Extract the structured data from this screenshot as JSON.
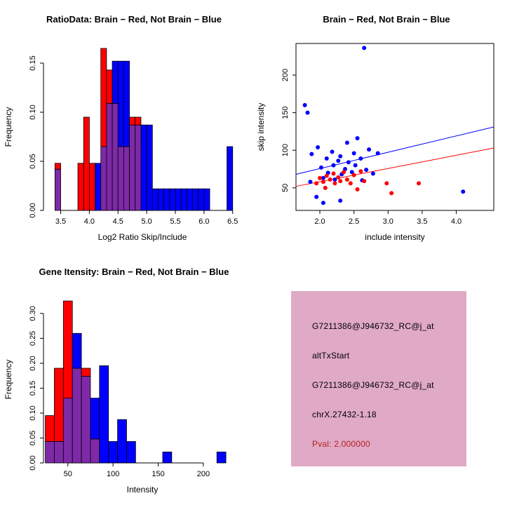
{
  "page": {
    "background": "#FFFFFF"
  },
  "colors": {
    "red": "#FF0000",
    "blue": "#0000FF",
    "overlap": "#7E2AA8",
    "axis": "#000000",
    "text": "#000000"
  },
  "chart_data": [
    {
      "id": "ratio-histogram",
      "type": "bar",
      "subtype": "overlaid-histogram",
      "title": "RatioData: Brain − Red, Not Brain − Blue",
      "xlabel": "Log2 Ratio Skip/Include",
      "ylabel": "Frequency",
      "xlim": [
        3.2,
        6.65
      ],
      "ylim": [
        0,
        0.17
      ],
      "grid": false,
      "legend": "none",
      "xticks": [
        {
          "v": 3.5,
          "label": "3.5"
        },
        {
          "v": 4.0,
          "label": "4.0"
        },
        {
          "v": 4.5,
          "label": "4.5"
        },
        {
          "v": 5.0,
          "label": "5.0"
        },
        {
          "v": 5.5,
          "label": "5.5"
        },
        {
          "v": 6.0,
          "label": "6.0"
        },
        {
          "v": 6.5,
          "label": "6.5"
        }
      ],
      "yticks": [
        {
          "v": 0,
          "label": "0.00"
        },
        {
          "v": 0.05,
          "label": "0.05"
        },
        {
          "v": 0.1,
          "label": "0.10"
        },
        {
          "v": 0.15,
          "label": "0.15"
        }
      ],
      "series_legend": {
        "red": "Brain",
        "blue": "Not Brain"
      },
      "bin_width": 0.1,
      "bins": [
        [
          3.4,
          0.048,
          0.042
        ],
        [
          3.8,
          0.048,
          0
        ],
        [
          3.9,
          0.095,
          0
        ],
        [
          4.0,
          0.048,
          0
        ],
        [
          4.1,
          0,
          0.048
        ],
        [
          4.2,
          0.165,
          0.065
        ],
        [
          4.3,
          0.143,
          0.109
        ],
        [
          4.4,
          0.109,
          0.152
        ],
        [
          4.5,
          0.065,
          0.152
        ],
        [
          4.6,
          0.065,
          0.152
        ],
        [
          4.7,
          0.095,
          0.087
        ],
        [
          4.8,
          0.095,
          0.087
        ],
        [
          4.9,
          0,
          0.087
        ],
        [
          5.0,
          0,
          0.087
        ],
        [
          5.1,
          0,
          0.022
        ],
        [
          5.2,
          0,
          0.022
        ],
        [
          5.3,
          0,
          0.022
        ],
        [
          5.4,
          0,
          0.022
        ],
        [
          5.5,
          0,
          0.022
        ],
        [
          5.6,
          0,
          0.022
        ],
        [
          5.7,
          0,
          0.022
        ],
        [
          5.8,
          0,
          0.022
        ],
        [
          5.9,
          0,
          0.022
        ],
        [
          6.0,
          0,
          0.022
        ],
        [
          6.4,
          0,
          0.065
        ]
      ]
    },
    {
      "id": "intensity-scatter",
      "type": "scatter",
      "title": "Brain − Red, Not Brain − Blue",
      "xlabel": "include intensity",
      "ylabel": "skip intensity",
      "xlim": [
        1.65,
        4.55
      ],
      "ylim": [
        20,
        242
      ],
      "grid": false,
      "legend": "none",
      "box": true,
      "xticks": [
        {
          "v": 2.0,
          "label": "2.0"
        },
        {
          "v": 2.5,
          "label": "2.5"
        },
        {
          "v": 3.0,
          "label": "3.0"
        },
        {
          "v": 3.5,
          "label": "3.5"
        },
        {
          "v": 4.0,
          "label": "4.0"
        }
      ],
      "yticks": [
        {
          "v": 50,
          "label": "50"
        },
        {
          "v": 100,
          "label": "100"
        },
        {
          "v": 150,
          "label": "150"
        },
        {
          "v": 200,
          "label": "200"
        }
      ],
      "series": [
        {
          "name": "Not Brain",
          "color_key": "blue",
          "points": [
            [
              1.78,
              160
            ],
            [
              1.82,
              150
            ],
            [
              1.88,
              95
            ],
            [
              1.86,
              58
            ],
            [
              1.95,
              38
            ],
            [
              1.97,
              104
            ],
            [
              2.02,
              77
            ],
            [
              2.05,
              63
            ],
            [
              2.05,
              30
            ],
            [
              2.1,
              89
            ],
            [
              2.12,
              70
            ],
            [
              2.18,
              98
            ],
            [
              2.2,
              80
            ],
            [
              2.22,
              61
            ],
            [
              2.27,
              86
            ],
            [
              2.3,
              92
            ],
            [
              2.3,
              33
            ],
            [
              2.32,
              68
            ],
            [
              2.37,
              75
            ],
            [
              2.4,
              110
            ],
            [
              2.42,
              84
            ],
            [
              2.47,
              71
            ],
            [
              2.5,
              96
            ],
            [
              2.52,
              80
            ],
            [
              2.55,
              116
            ],
            [
              2.6,
              89
            ],
            [
              2.62,
              60
            ],
            [
              2.65,
              236
            ],
            [
              2.68,
              74
            ],
            [
              2.72,
              101
            ],
            [
              2.78,
              69
            ],
            [
              2.85,
              96
            ],
            [
              4.1,
              45
            ]
          ]
        },
        {
          "name": "Brain",
          "color_key": "red",
          "points": [
            [
              1.95,
              56
            ],
            [
              2.0,
              63
            ],
            [
              2.05,
              58
            ],
            [
              2.08,
              50
            ],
            [
              2.1,
              66
            ],
            [
              2.15,
              61
            ],
            [
              2.2,
              69
            ],
            [
              2.22,
              56
            ],
            [
              2.27,
              64
            ],
            [
              2.3,
              59
            ],
            [
              2.35,
              71
            ],
            [
              2.4,
              61
            ],
            [
              2.45,
              56
            ],
            [
              2.5,
              67
            ],
            [
              2.55,
              48
            ],
            [
              2.6,
              72
            ],
            [
              2.65,
              59
            ],
            [
              2.98,
              56
            ],
            [
              3.05,
              43
            ],
            [
              3.45,
              56
            ]
          ]
        }
      ],
      "lines": [
        {
          "name": "not-brain-fit",
          "color_key": "blue",
          "x1": 1.65,
          "y1": 68,
          "x2": 4.55,
          "y2": 131
        },
        {
          "name": "brain-fit",
          "color_key": "red",
          "x1": 1.65,
          "y1": 52,
          "x2": 4.55,
          "y2": 103
        }
      ]
    },
    {
      "id": "gene-intensity-histogram",
      "type": "bar",
      "subtype": "overlaid-histogram",
      "title": "Gene Itensity: Brain − Red, Not Brain − Blue",
      "xlabel": "Intensity",
      "ylabel": "Frequency",
      "xlim": [
        23,
        242
      ],
      "ylim": [
        0,
        0.335
      ],
      "grid": false,
      "legend": "none",
      "xticks": [
        {
          "v": 50,
          "label": "50"
        },
        {
          "v": 100,
          "label": "100"
        },
        {
          "v": 150,
          "label": "150"
        },
        {
          "v": 200,
          "label": "200"
        }
      ],
      "yticks": [
        {
          "v": 0,
          "label": "0.00"
        },
        {
          "v": 0.05,
          "label": "0.05"
        },
        {
          "v": 0.1,
          "label": "0.10"
        },
        {
          "v": 0.15,
          "label": "0.15"
        },
        {
          "v": 0.2,
          "label": "0.20"
        },
        {
          "v": 0.25,
          "label": "0.25"
        },
        {
          "v": 0.3,
          "label": "0.30"
        }
      ],
      "series_legend": {
        "red": "Brain",
        "blue": "Not Brain"
      },
      "bin_width": 10,
      "bins": [
        [
          25,
          0.095,
          0.043
        ],
        [
          35,
          0.19,
          0.043
        ],
        [
          45,
          0.325,
          0.13
        ],
        [
          55,
          0.19,
          0.26
        ],
        [
          65,
          0.19,
          0.174
        ],
        [
          75,
          0.048,
          0.13
        ],
        [
          85,
          0,
          0.195
        ],
        [
          95,
          0,
          0.043
        ],
        [
          105,
          0,
          0.087
        ],
        [
          115,
          0,
          0.043
        ],
        [
          155,
          0,
          0.022
        ],
        [
          215,
          0,
          0.022
        ]
      ]
    }
  ],
  "info_panel": {
    "bg": "#E0A9C6",
    "lines": [
      {
        "text": "G7211386@J946732_RC@j_at",
        "color": "#000000"
      },
      {
        "text": "altTxStart",
        "color": "#000000"
      },
      {
        "text": "G7211386@J946732_RC@j_at",
        "color": "#000000"
      },
      {
        "text": "chrX.27432-1.18",
        "color": "#000000"
      },
      {
        "text": "Pval: 2.000000",
        "color": "#B22222"
      }
    ]
  }
}
